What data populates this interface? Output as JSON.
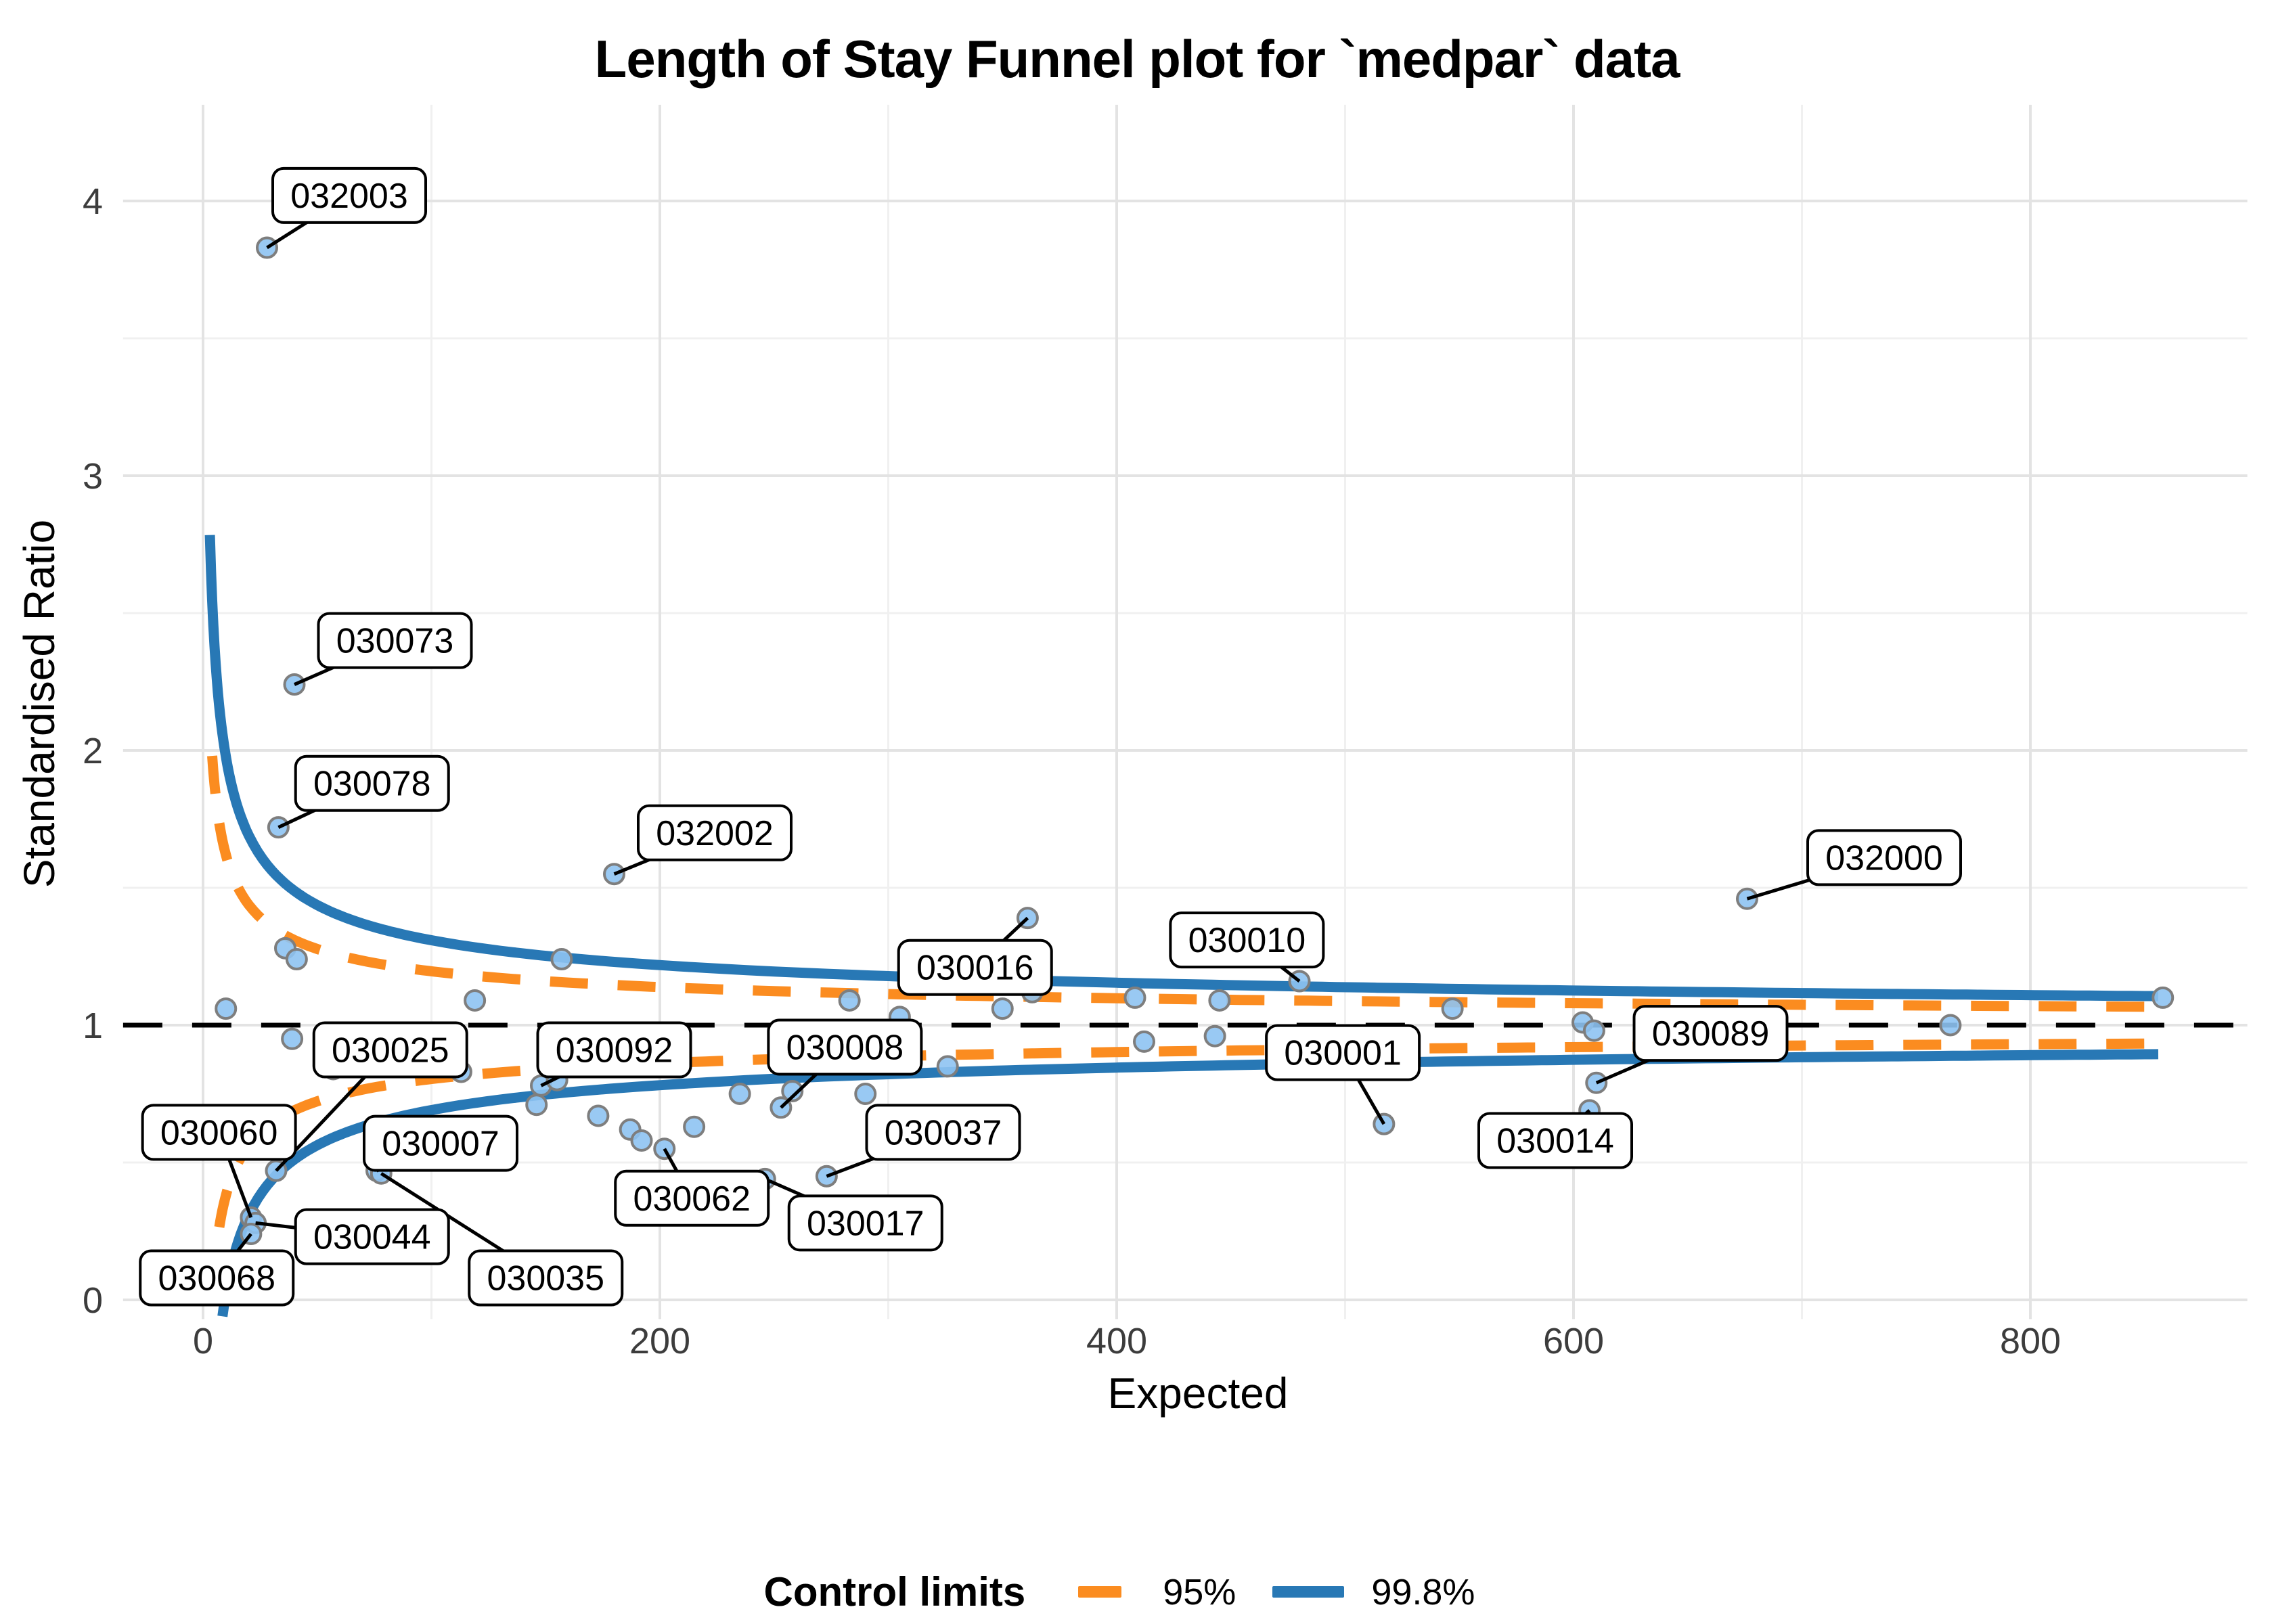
{
  "title": "Length of Stay Funnel plot for `medpar` data",
  "y_axis": {
    "label": "Standardised Ratio",
    "ticks": [
      0,
      1,
      2,
      3,
      4
    ],
    "minor": [
      0.5,
      1.5,
      2.5,
      3.5
    ],
    "range": [
      -0.07,
      4.35
    ]
  },
  "x_axis": {
    "label": "Expected",
    "ticks": [
      0,
      200,
      400,
      600,
      800
    ],
    "minor": [
      100,
      300,
      500,
      700
    ],
    "range": [
      -35,
      895
    ]
  },
  "reference_line": {
    "y": 1,
    "color": "#000000",
    "style": "dashed"
  },
  "legend": {
    "title": "Control limits",
    "items": [
      {
        "label": "95%",
        "style": "dashed",
        "color": "#FB8C20"
      },
      {
        "label": "99.8%",
        "style": "solid",
        "color": "#2878B5"
      }
    ]
  },
  "point_style": {
    "fill": "#8EC3F2",
    "stroke": "#7E7E7E"
  },
  "label_box_style": {
    "fill": "#ffffff",
    "border": "#000000",
    "text": "#000000"
  },
  "chart_data": {
    "type": "scatter",
    "title": "Length of Stay Funnel plot for `medpar` data",
    "xlabel": "Expected",
    "ylabel": "Standardised Ratio",
    "xlim": [
      -35,
      895
    ],
    "ylim": [
      -0.07,
      4.35
    ],
    "grid": "on",
    "legend_position": "bottom",
    "reference_ratio": 1,
    "control_limits": [
      {
        "level": "95%",
        "z": 1.96,
        "color": "#FB8C20",
        "style": "dashed",
        "x_start": 4,
        "x_end": 858
      },
      {
        "level": "99.8%",
        "z": 3.09,
        "color": "#2878B5",
        "style": "solid",
        "x_start": 3,
        "x_end": 858
      }
    ],
    "points": [
      {
        "id": "032003",
        "expected": 28,
        "ratio": 3.83,
        "labeled": true,
        "label_at": [
          64,
          4.02
        ]
      },
      {
        "id": "030073",
        "expected": 40,
        "ratio": 2.24,
        "labeled": true,
        "label_at": [
          84,
          2.4
        ]
      },
      {
        "id": "030078",
        "expected": 33,
        "ratio": 1.72,
        "labeled": true,
        "label_at": [
          74,
          1.88
        ]
      },
      {
        "id": "032002",
        "expected": 180,
        "ratio": 1.55,
        "labeled": true,
        "label_at": [
          224,
          1.7
        ]
      },
      {
        "id": "032000",
        "expected": 676,
        "ratio": 1.46,
        "labeled": true,
        "label_at": [
          736,
          1.61
        ]
      },
      {
        "id": "030016",
        "expected": 361,
        "ratio": 1.39,
        "labeled": true,
        "label_at": [
          338,
          1.21
        ]
      },
      {
        "id": "030010",
        "expected": 480,
        "ratio": 1.16,
        "labeled": true,
        "label_at": [
          457,
          1.31
        ]
      },
      {
        "id": "030025",
        "expected": 32,
        "ratio": 0.47,
        "labeled": true,
        "label_at": [
          82,
          0.91
        ]
      },
      {
        "id": "030092",
        "expected": 148,
        "ratio": 0.78,
        "labeled": true,
        "label_at": [
          180,
          0.91
        ]
      },
      {
        "id": "030008",
        "expected": 253,
        "ratio": 0.7,
        "labeled": true,
        "label_at": [
          281,
          0.92
        ]
      },
      {
        "id": "030001",
        "expected": 517,
        "ratio": 0.64,
        "labeled": true,
        "label_at": [
          499,
          0.9
        ]
      },
      {
        "id": "030089",
        "expected": 610,
        "ratio": 0.79,
        "labeled": true,
        "label_at": [
          660,
          0.97
        ]
      },
      {
        "id": "030060",
        "expected": 21,
        "ratio": 0.3,
        "labeled": true,
        "label_at": [
          7,
          0.61
        ]
      },
      {
        "id": "030007",
        "expected": 76,
        "ratio": 0.47,
        "labeled": true,
        "label_at": [
          104,
          0.57
        ]
      },
      {
        "id": "030037",
        "expected": 273,
        "ratio": 0.45,
        "labeled": true,
        "label_at": [
          324,
          0.61
        ]
      },
      {
        "id": "030014",
        "expected": 607,
        "ratio": 0.69,
        "labeled": true,
        "label_at": [
          592,
          0.58
        ]
      },
      {
        "id": "030062",
        "expected": 202,
        "ratio": 0.55,
        "labeled": true,
        "label_at": [
          214,
          0.37
        ]
      },
      {
        "id": "030017",
        "expected": 246,
        "ratio": 0.44,
        "labeled": true,
        "label_at": [
          290,
          0.28
        ]
      },
      {
        "id": "030044",
        "expected": 23,
        "ratio": 0.28,
        "labeled": true,
        "label_at": [
          74,
          0.23
        ]
      },
      {
        "id": "030035",
        "expected": 78,
        "ratio": 0.46,
        "labeled": true,
        "label_at": [
          150,
          0.08
        ]
      },
      {
        "id": "030068",
        "expected": 21,
        "ratio": 0.24,
        "labeled": true,
        "label_at": [
          6,
          0.08
        ]
      },
      {
        "expected": 10,
        "ratio": 1.06,
        "labeled": false
      },
      {
        "expected": 36,
        "ratio": 1.28,
        "labeled": false
      },
      {
        "expected": 41,
        "ratio": 1.24,
        "labeled": false
      },
      {
        "expected": 39,
        "ratio": 0.95,
        "labeled": false
      },
      {
        "expected": 57,
        "ratio": 0.84,
        "labeled": false
      },
      {
        "expected": 113,
        "ratio": 0.83,
        "labeled": false
      },
      {
        "expected": 119,
        "ratio": 1.09,
        "labeled": false
      },
      {
        "expected": 157,
        "ratio": 1.24,
        "labeled": false
      },
      {
        "expected": 155,
        "ratio": 0.8,
        "labeled": false
      },
      {
        "expected": 146,
        "ratio": 0.71,
        "labeled": false
      },
      {
        "expected": 173,
        "ratio": 0.67,
        "labeled": false
      },
      {
        "expected": 187,
        "ratio": 0.62,
        "labeled": false
      },
      {
        "expected": 192,
        "ratio": 0.58,
        "labeled": false
      },
      {
        "expected": 215,
        "ratio": 0.63,
        "labeled": false
      },
      {
        "expected": 235,
        "ratio": 0.75,
        "labeled": false
      },
      {
        "expected": 258,
        "ratio": 0.76,
        "labeled": false
      },
      {
        "expected": 290,
        "ratio": 0.75,
        "labeled": false
      },
      {
        "expected": 283,
        "ratio": 1.09,
        "labeled": false
      },
      {
        "expected": 305,
        "ratio": 1.03,
        "labeled": false
      },
      {
        "expected": 326,
        "ratio": 0.85,
        "labeled": false
      },
      {
        "expected": 350,
        "ratio": 1.06,
        "labeled": false
      },
      {
        "expected": 363,
        "ratio": 1.12,
        "labeled": false
      },
      {
        "expected": 408,
        "ratio": 1.1,
        "labeled": false
      },
      {
        "expected": 412,
        "ratio": 0.94,
        "labeled": false
      },
      {
        "expected": 443,
        "ratio": 0.96,
        "labeled": false
      },
      {
        "expected": 445,
        "ratio": 1.09,
        "labeled": false
      },
      {
        "expected": 547,
        "ratio": 1.06,
        "labeled": false
      },
      {
        "expected": 604,
        "ratio": 1.01,
        "labeled": false
      },
      {
        "expected": 609,
        "ratio": 0.98,
        "labeled": false
      },
      {
        "expected": 765,
        "ratio": 1.0,
        "labeled": false
      },
      {
        "expected": 858,
        "ratio": 1.1,
        "labeled": false
      }
    ]
  }
}
